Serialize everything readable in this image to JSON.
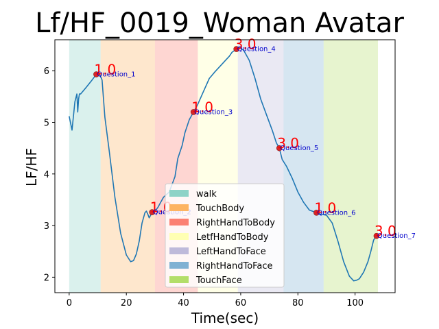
{
  "chart_data": {
    "type": "line",
    "title": "Lf/HF_0019_Woman Avatar",
    "xlabel": "Time(sec)",
    "ylabel": "LF/HF",
    "xlim": [
      -5,
      114
    ],
    "ylim": [
      1.7,
      6.6
    ],
    "xticks": [
      0,
      20,
      40,
      60,
      80,
      100
    ],
    "yticks": [
      2,
      3,
      4,
      5,
      6
    ],
    "grid": false,
    "legend_position": "bottom-center",
    "line_color": "#1f77b4",
    "regions": [
      {
        "label": "walk",
        "start": 0,
        "end": 11,
        "color": "#8dd3c7"
      },
      {
        "label": "TouchBody",
        "start": 11,
        "end": 30,
        "color": "#fdb462"
      },
      {
        "label": "RightHandToBody",
        "start": 30,
        "end": 45,
        "color": "#fb8072"
      },
      {
        "label": "LetfHandToBody",
        "start": 45,
        "end": 59,
        "color": "#ffffb3"
      },
      {
        "label": "LeftHandToFace",
        "start": 59,
        "end": 75,
        "color": "#bebada"
      },
      {
        "label": "RightHandToFace",
        "start": 75,
        "end": 89,
        "color": "#80b1d3"
      },
      {
        "label": "TouchFace",
        "start": 89,
        "end": 108,
        "color": "#b3de69"
      }
    ],
    "series": [
      {
        "x": [
          0,
          1,
          2,
          2.7,
          3,
          3.3,
          3.6,
          4,
          6,
          8,
          9.5,
          10.5,
          11.5,
          12.5,
          14,
          16,
          18,
          20,
          21.5,
          22.5,
          23.5,
          24.5,
          25.5,
          26.5,
          27,
          27.5,
          28,
          29,
          30,
          31,
          32,
          33,
          35,
          37,
          38,
          39.5,
          40.5,
          42,
          43.5,
          45,
          47,
          49,
          51,
          53,
          55,
          56,
          57,
          58.5,
          59.5,
          61,
          63,
          65,
          67,
          69,
          71,
          72.5,
          73.5,
          74.5,
          76,
          78,
          80,
          82,
          84,
          86.5,
          88,
          90,
          92,
          94,
          96,
          98,
          99.5,
          100.5,
          101.5,
          103,
          104.5,
          105.5,
          106.5,
          107.5
        ],
        "y": [
          5.12,
          4.85,
          5.4,
          5.55,
          5.2,
          5.45,
          5.55,
          5.55,
          5.68,
          5.82,
          5.93,
          5.95,
          5.82,
          5.1,
          4.45,
          3.55,
          2.85,
          2.43,
          2.3,
          2.32,
          2.45,
          2.7,
          3.05,
          3.25,
          3.28,
          3.22,
          3.15,
          3.25,
          3.28,
          3.35,
          3.45,
          3.55,
          3.65,
          3.95,
          4.3,
          4.55,
          4.8,
          5.05,
          5.2,
          5.35,
          5.6,
          5.85,
          5.98,
          6.1,
          6.22,
          6.28,
          6.36,
          6.42,
          6.45,
          6.4,
          6.2,
          5.85,
          5.45,
          5.15,
          4.85,
          4.6,
          4.5,
          4.28,
          4.15,
          3.92,
          3.65,
          3.45,
          3.3,
          3.25,
          3.22,
          3.2,
          3.05,
          2.7,
          2.3,
          2.02,
          1.93,
          1.94,
          1.97,
          2.1,
          2.3,
          2.5,
          2.72,
          2.8
        ]
      }
    ],
    "markers": [
      {
        "x": 9.5,
        "y": 5.93,
        "value": "1.0",
        "label": "Question_1"
      },
      {
        "x": 29,
        "y": 3.26,
        "value": "1.0",
        "label": "Question_2"
      },
      {
        "x": 43.5,
        "y": 5.2,
        "value": "1.0",
        "label": "Question_3"
      },
      {
        "x": 58.5,
        "y": 6.42,
        "value": "3.0",
        "label": "Question_4"
      },
      {
        "x": 73.5,
        "y": 4.5,
        "value": "3.0",
        "label": "Question_5"
      },
      {
        "x": 86.5,
        "y": 3.25,
        "value": "1.0",
        "label": "Question_6"
      },
      {
        "x": 107.5,
        "y": 2.8,
        "value": "3.0",
        "label": "Question_7"
      }
    ]
  }
}
